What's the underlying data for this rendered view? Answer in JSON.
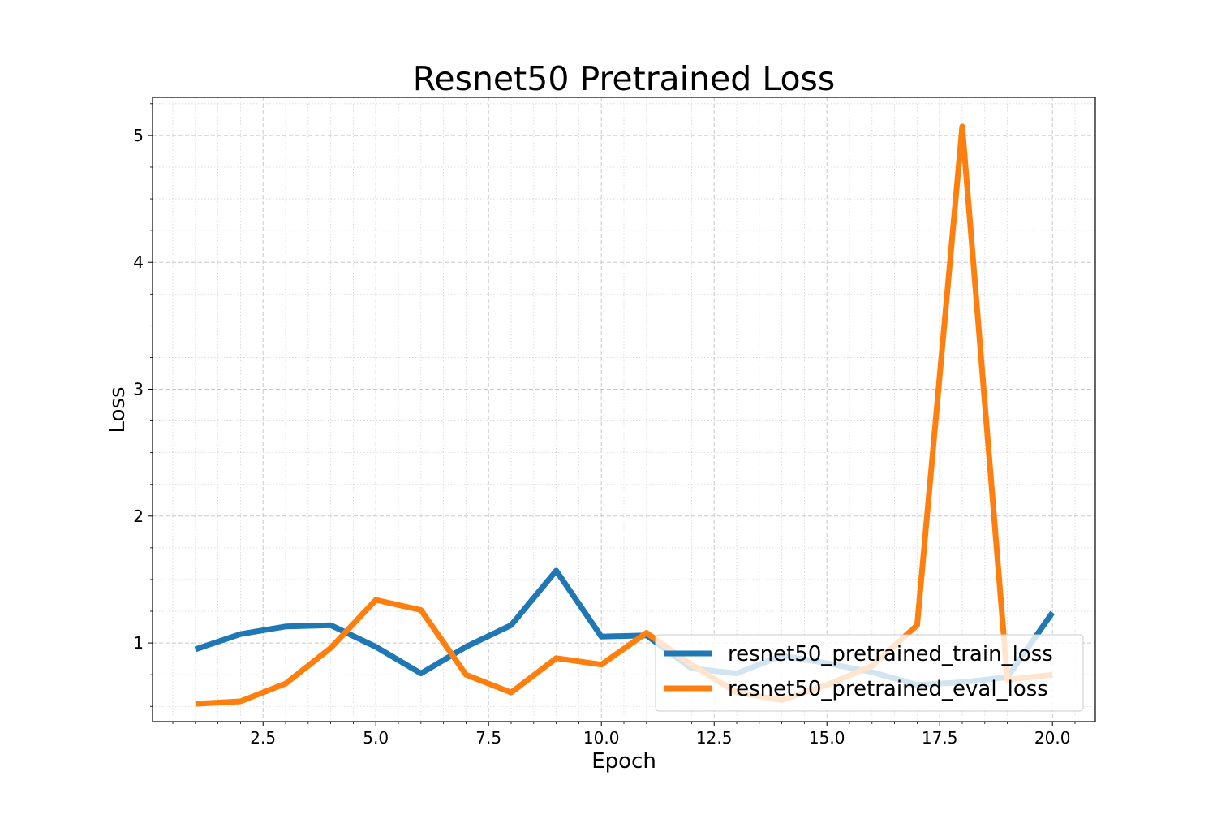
{
  "chart_data": {
    "type": "line",
    "title": "Resnet50 Pretrained Loss",
    "xlabel": "Epoch",
    "ylabel": "Loss",
    "xlim": [
      0.05,
      20.95
    ],
    "ylim": [
      0.38,
      5.3
    ],
    "x_ticks": [
      2.5,
      5.0,
      7.5,
      10.0,
      12.5,
      15.0,
      17.5,
      20.0
    ],
    "x_tick_labels": [
      "2.5",
      "5.0",
      "7.5",
      "10.0",
      "12.5",
      "15.0",
      "17.5",
      "20.0"
    ],
    "y_ticks": [
      1,
      2,
      3,
      4,
      5
    ],
    "y_tick_labels": [
      "1",
      "2",
      "3",
      "4",
      "5"
    ],
    "grid": true,
    "legend_position": "lower-right",
    "x": [
      1,
      2,
      3,
      4,
      5,
      6,
      7,
      8,
      9,
      10,
      11,
      12,
      13,
      14,
      15,
      16,
      17,
      18,
      19,
      20
    ],
    "series": [
      {
        "name": "resnet50_pretrained_train_loss",
        "color": "#1f77b4",
        "values": [
          0.95,
          1.07,
          1.13,
          1.14,
          0.97,
          0.76,
          0.97,
          1.14,
          1.57,
          1.05,
          1.06,
          0.8,
          0.76,
          0.9,
          0.84,
          0.77,
          0.67,
          0.69,
          0.73,
          1.24
        ]
      },
      {
        "name": "resnet50_pretrained_eval_loss",
        "color": "#ff7f0e",
        "values": [
          0.52,
          0.54,
          0.68,
          0.96,
          1.34,
          1.26,
          0.75,
          0.61,
          0.88,
          0.83,
          1.08,
          0.83,
          0.61,
          0.55,
          0.67,
          0.82,
          1.14,
          5.07,
          0.71,
          0.75
        ]
      }
    ]
  }
}
